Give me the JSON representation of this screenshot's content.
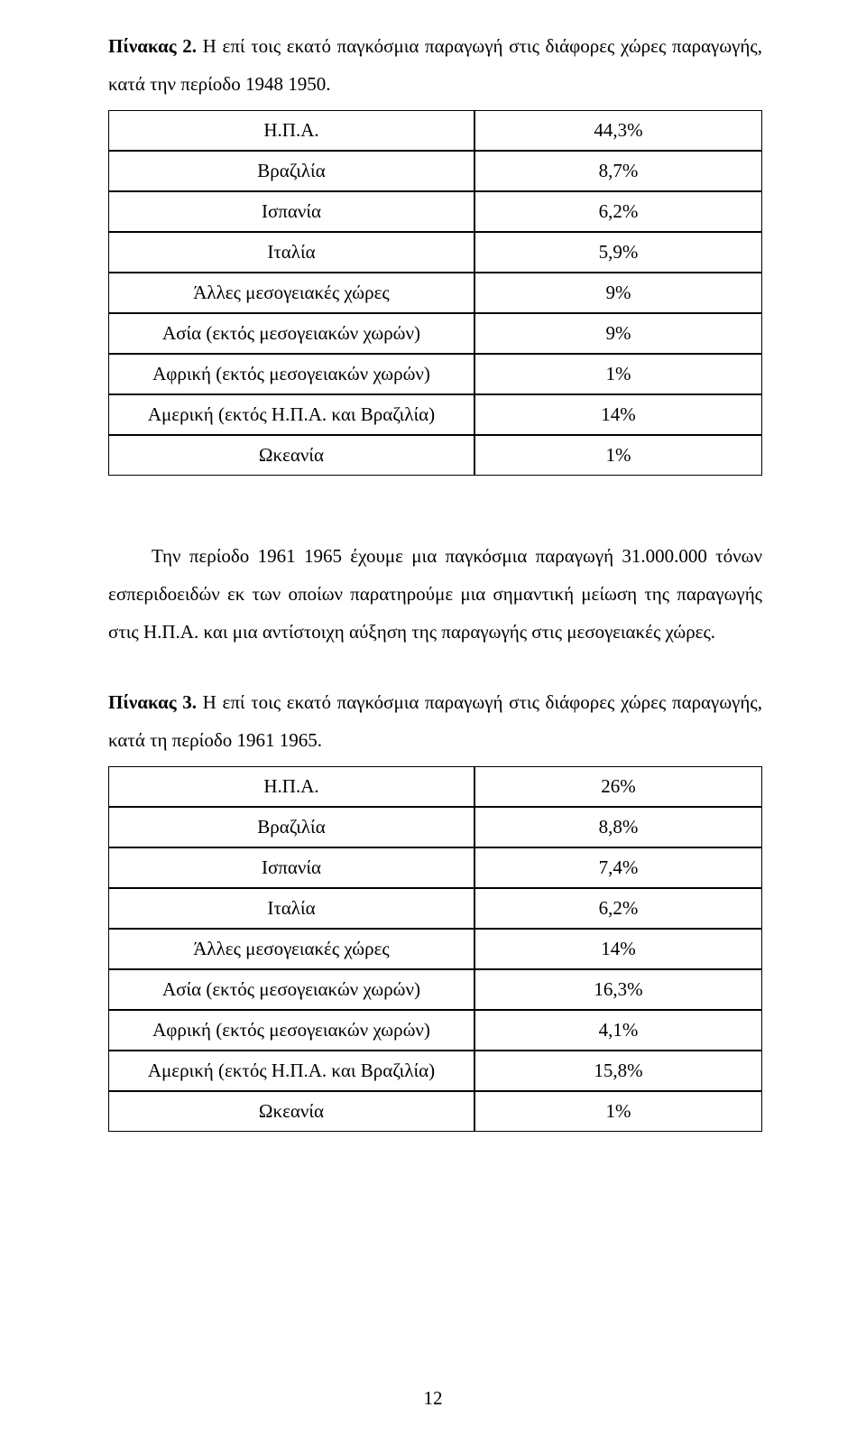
{
  "caption1": {
    "label": "Πίνακας 2.",
    "text": " Η επί τοις εκατό παγκόσμια παραγωγή στις διάφορες χώρες παραγωγής, κατά την περίοδο 1948 1950."
  },
  "table1": {
    "rows": [
      {
        "label": "Η.Π.Α.",
        "value": "44,3%"
      },
      {
        "label": "Βραζιλία",
        "value": "8,7%"
      },
      {
        "label": "Ισπανία",
        "value": "6,2%"
      },
      {
        "label": "Ιταλία",
        "value": "5,9%"
      },
      {
        "label": "Άλλες μεσογειακές χώρες",
        "value": "9%"
      },
      {
        "label": "Ασία (εκτός μεσογειακών χωρών)",
        "value": "9%"
      },
      {
        "label": "Αφρική (εκτός μεσογειακών χωρών)",
        "value": "1%"
      },
      {
        "label": "Αμερική (εκτός Η.Π.Α. και Βραζιλία)",
        "value": "14%"
      },
      {
        "label": "Ωκεανία",
        "value": "1%"
      }
    ]
  },
  "para1": "Την περίοδο 1961 1965 έχουμε μια παγκόσμια παραγωγή 31.000.000 τόνων εσπεριδοειδών εκ των οποίων παρατηρούμε μια σημαντική μείωση της παραγωγής στις Η.Π.Α. και μια αντίστοιχη αύξηση της παραγωγής στις μεσογειακές χώρες.",
  "caption2": {
    "label": "Πίνακας 3.",
    "text": " Η επί τοις εκατό παγκόσμια παραγωγή στις διάφορες χώρες παραγωγής, κατά τη περίοδο 1961 1965."
  },
  "table2": {
    "rows": [
      {
        "label": "Η.Π.Α.",
        "value": "26%"
      },
      {
        "label": "Βραζιλία",
        "value": "8,8%"
      },
      {
        "label": "Ισπανία",
        "value": "7,4%"
      },
      {
        "label": "Ιταλία",
        "value": "6,2%"
      },
      {
        "label": "Άλλες μεσογειακές χώρες",
        "value": "14%"
      },
      {
        "label": "Ασία (εκτός μεσογειακών χωρών)",
        "value": "16,3%"
      },
      {
        "label": "Αφρική (εκτός μεσογειακών χωρών)",
        "value": "4,1%"
      },
      {
        "label": "Αμερική (εκτός Η.Π.Α. και Βραζιλία)",
        "value": "15,8%"
      },
      {
        "label": "Ωκεανία",
        "value": "1%"
      }
    ]
  },
  "pageNumber": "12"
}
